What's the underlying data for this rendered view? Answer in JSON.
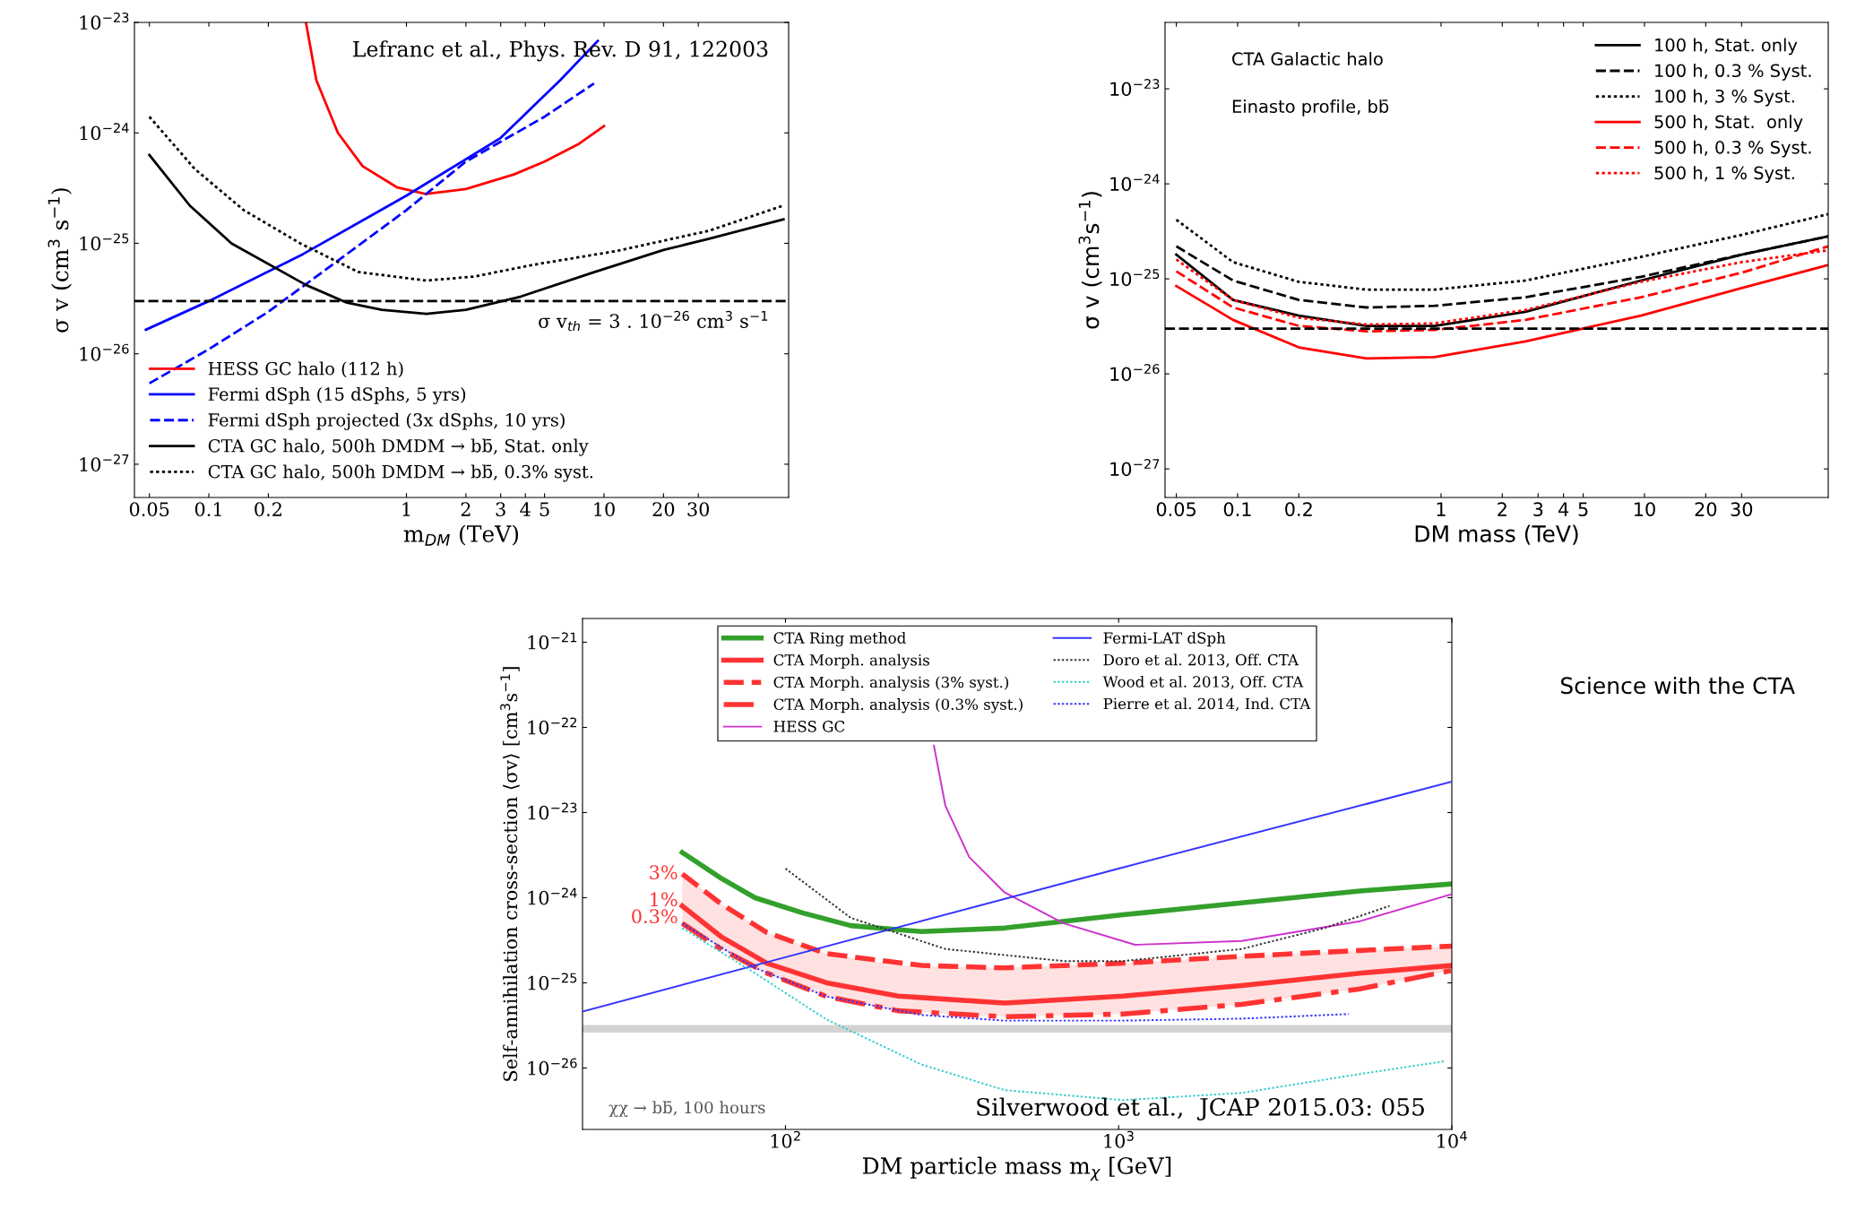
{
  "chart_data": [
    {
      "type": "line",
      "xlabel": "m$_{DM}$ (TeV)",
      "ylabel": "σ v (cm$^{3}$ s$^{−1}$)",
      "log": "xy",
      "legend": "bottom left",
      "grid": false,
      "xlim": [
        0.042,
        86
      ],
      "xticks": [
        0.05,
        0.1,
        0.2,
        1,
        2,
        3,
        4,
        5,
        10,
        20,
        30
      ],
      "ylim": [
        5e-28,
        1e-23
      ],
      "yticks": [
        {
          "value": 1e-27,
          "label": "10$^{−27}$"
        },
        {
          "value": 1e-26,
          "label": "10$^{−26}$"
        },
        {
          "value": 1e-25,
          "label": "10$^{−25}$"
        },
        {
          "value": 1e-24,
          "label": "10$^{−24}$"
        },
        {
          "value": 1e-23,
          "label": "10$^{−23}$"
        }
      ],
      "series": [
        {
          "name": "HESS GC halo (112 h)",
          "color": "#ff0000",
          "line_style": "solid",
          "x": [
            0.31,
            0.35,
            0.45,
            0.6,
            0.9,
            1.25,
            2,
            3.5,
            5,
            6,
            7.5,
            10
          ],
          "values": [
            1e-23,
            3e-24,
            1e-24,
            5e-25,
            3.2e-25,
            2.8e-25,
            3.1e-25,
            4.2e-25,
            5.5e-25,
            6.5e-25,
            8e-25,
            1.15e-24
          ]
        },
        {
          "name": "Fermi dSph (15 dSphs, 5 yrs)",
          "color": "#0000ff",
          "line_style": "solid",
          "x": [
            0.048,
            0.1,
            0.3,
            1,
            3,
            6,
            9.3
          ],
          "values": [
            1.65e-26,
            3e-26,
            8e-26,
            2.7e-25,
            9e-25,
            3e-24,
            6.8e-24
          ]
        },
        {
          "name": "Fermi dSph projected (3x dSphs, 10 yrs)",
          "color": "#0000ff",
          "line_style": "dashed",
          "x": [
            0.05,
            0.1,
            0.2,
            0.5,
            1,
            2,
            5,
            8.9
          ],
          "values": [
            5.4e-27,
            1.1e-26,
            2.4e-26,
            8e-26,
            2e-25,
            5.5e-25,
            1.4e-24,
            2.8e-24
          ]
        },
        {
          "name": "CTA GC halo, 500h DMDM → bb̄, Stat. only",
          "color": "#000000",
          "line_style": "solid",
          "x": [
            0.05,
            0.08,
            0.13,
            0.31,
            0.5,
            0.75,
            1.26,
            2,
            3.8,
            8.7,
            20,
            34,
            81
          ],
          "values": [
            6.3e-25,
            2.2e-25,
            1e-25,
            4.2e-26,
            2.9e-26,
            2.5e-26,
            2.3e-26,
            2.5e-26,
            3.3e-26,
            5.4e-26,
            8.7e-26,
            1.1e-25,
            1.65e-25
          ]
        },
        {
          "name": "CTA GC halo, 500h DMDM → bb̄, 0.3% syst.",
          "color": "#000000",
          "line_style": "dotted",
          "x": [
            0.05,
            0.085,
            0.15,
            0.29,
            0.57,
            1.26,
            2.2,
            4.4,
            11.5,
            34,
            81
          ],
          "values": [
            1.4e-24,
            4.7e-25,
            2e-25,
            1e-25,
            5.5e-26,
            4.6e-26,
            5e-26,
            6.4e-26,
            8.5e-26,
            1.3e-25,
            2.2e-25
          ]
        }
      ],
      "ref_lines": [
        {
          "axis": "y",
          "value": 3e-26,
          "color": "#000000",
          "line_style": "dashed"
        }
      ],
      "annotations": [
        "Lefranc et al., Phys. Rev. D 91, 122003",
        "σ v$_{th}$ = 3 . 10$^{−26}$ cm$^{3}$ s$^{−1}$"
      ]
    },
    {
      "type": "line",
      "xlabel": "DM mass (TeV)",
      "ylabel": "σ v (cm$^{3}$s$^{−1}$)",
      "log": "xy",
      "legend": "top right",
      "grid": false,
      "xlim": [
        0.044,
        80
      ],
      "xticks": [
        0.05,
        0.1,
        0.2,
        1,
        2,
        3,
        4,
        5,
        10,
        20,
        30
      ],
      "ylim": [
        5e-28,
        5e-23
      ],
      "yticks": [
        {
          "value": 1e-27,
          "label": "10$^{−27}$"
        },
        {
          "value": 1e-26,
          "label": "10$^{−26}$"
        },
        {
          "value": 1e-25,
          "label": "10$^{−25}$"
        },
        {
          "value": 1e-24,
          "label": "10$^{−24}$"
        },
        {
          "value": 1e-23,
          "label": "10$^{−23}$"
        }
      ],
      "series": [
        {
          "name": "100 h, Stat. only",
          "color": "#000000",
          "line_style": "solid",
          "x": [
            0.05,
            0.095,
            0.2,
            0.43,
            0.93,
            2.6,
            9.6,
            30,
            80
          ],
          "values": [
            1.8e-25,
            6e-26,
            4.1e-26,
            3.2e-26,
            3.2e-26,
            4.5e-26,
            9.6e-26,
            1.8e-25,
            2.8e-25
          ]
        },
        {
          "name": "100 h, 0.3 % Syst.",
          "color": "#000000",
          "line_style": "dashed",
          "x": [
            0.05,
            0.095,
            0.2,
            0.43,
            0.93,
            2.6,
            9.6,
            30,
            80
          ],
          "values": [
            2.2e-25,
            9.6e-26,
            6e-26,
            5e-26,
            5.2e-26,
            6.4e-26,
            1.05e-25,
            1.8e-25,
            2.8e-25
          ]
        },
        {
          "name": "100 h, 3 % Syst.",
          "color": "#000000",
          "line_style": "dotted",
          "x": [
            0.05,
            0.095,
            0.2,
            0.43,
            0.93,
            2.6,
            9.6,
            30,
            80
          ],
          "values": [
            4.2e-25,
            1.5e-25,
            9.3e-26,
            7.7e-26,
            7.7e-26,
            9.6e-26,
            1.7e-25,
            2.9e-25,
            4.8e-25
          ]
        },
        {
          "name": "500 h, Stat.  only",
          "color": "#ff0000",
          "line_style": "solid",
          "x": [
            0.05,
            0.095,
            0.2,
            0.43,
            0.93,
            2.6,
            9.6,
            30,
            80
          ],
          "values": [
            8.4e-26,
            3.7e-26,
            1.9e-26,
            1.45e-26,
            1.5e-26,
            2.2e-26,
            4.1e-26,
            8e-26,
            1.4e-25
          ]
        },
        {
          "name": "500 h, 0.3 % Syst.",
          "color": "#ff0000",
          "line_style": "dashed",
          "x": [
            0.05,
            0.095,
            0.2,
            0.43,
            0.93,
            2.6,
            9.6,
            30,
            80
          ],
          "values": [
            1.2e-25,
            5e-26,
            3.2e-26,
            2.8e-26,
            2.9e-26,
            3.7e-26,
            6.4e-26,
            1.16e-25,
            2.2e-25
          ]
        },
        {
          "name": "500 h, 1 % Syst.",
          "color": "#ff0000",
          "line_style": "dotted",
          "x": [
            0.05,
            0.095,
            0.2,
            0.43,
            0.93,
            2.6,
            9.6,
            30,
            80
          ],
          "values": [
            1.6e-25,
            6e-26,
            3.9e-26,
            3.3e-26,
            3.4e-26,
            4.7e-26,
            9.3e-26,
            1.5e-25,
            2e-25
          ]
        }
      ],
      "ref_lines": [
        {
          "axis": "y",
          "value": 3e-26,
          "color": "#000000",
          "line_style": "dashed"
        }
      ],
      "annotations": [
        "CTA Galactic halo",
        "Einasto profile, bb̄",
        "Science with the CTA"
      ]
    },
    {
      "type": "line",
      "xlabel": "DM particle mass m$_{χ}$ [GeV]",
      "ylabel": "Self-annihilation cross-section ⟨σv⟩ [cm$^{3}$s$^{−1}$]",
      "log": "xy",
      "legend": "top",
      "grid": false,
      "xlim": [
        24.6,
        10000
      ],
      "xticks": [
        {
          "value": 100,
          "label": "10$^{2}$"
        },
        {
          "value": 1000,
          "label": "10$^{3}$"
        },
        {
          "value": 10000,
          "label": "10$^{4}$"
        }
      ],
      "ylim": [
        1.9e-27,
        1.9e-21
      ],
      "yticks": [
        {
          "value": 1e-26,
          "label": "10$^{−26}$"
        },
        {
          "value": 1e-25,
          "label": "10$^{−25}$"
        },
        {
          "value": 1e-24,
          "label": "10$^{−24}$"
        },
        {
          "value": 1e-23,
          "label": "10$^{−23}$"
        },
        {
          "value": 1e-22,
          "label": "10$^{−22}$"
        },
        {
          "value": 1e-21,
          "label": "10$^{−21}$"
        }
      ],
      "series": [
        {
          "name": "CTA Ring method",
          "color": "#33a02c",
          "line_style": "solid",
          "x": [
            49,
            64,
            81,
            113,
            157,
            256,
            455,
            1030,
            2340,
            5300,
            10000
          ],
          "values": [
            3.4e-24,
            1.7e-24,
            1e-24,
            6.6e-25,
            4.7e-25,
            4e-25,
            4.4e-25,
            6.3e-25,
            8.7e-25,
            1.2e-24,
            1.45e-24
          ]
        },
        {
          "name": "CTA Morph. analysis",
          "color": "#ff3333",
          "line_style": "solid",
          "x": [
            49,
            64,
            88,
            133,
            218,
            455,
            1030,
            2340,
            5300,
            10000
          ],
          "values": [
            8e-25,
            3.5e-25,
            1.7e-25,
            1e-25,
            7e-26,
            5.8e-26,
            7e-26,
            9.3e-26,
            1.3e-25,
            1.6e-25
          ],
          "lower": [
            5e-25,
            2.5e-25,
            1.3e-25,
            6.9e-26,
            4.7e-26,
            4e-26,
            4.3e-26,
            5.6e-26,
            8.5e-26,
            1.4e-25
          ],
          "upper": [
            1.9e-24,
            8.5e-25,
            3.9e-25,
            2.2e-25,
            1.6e-25,
            1.5e-25,
            1.7e-25,
            2.05e-25,
            2.4e-25,
            2.7e-25
          ]
        },
        {
          "name": "CTA Morph. analysis (3% syst.)",
          "color": "#ff3333",
          "line_style": "dashed",
          "x": [
            49,
            64,
            88,
            133,
            256,
            455,
            1030,
            2340,
            5300,
            10000
          ],
          "values": [
            1.9e-24,
            8.5e-25,
            3.9e-25,
            2.2e-25,
            1.6e-25,
            1.5e-25,
            1.7e-25,
            2.05e-25,
            2.4e-25,
            2.7e-25
          ]
        },
        {
          "name": "CTA Morph. analysis (0.3% syst.)",
          "color": "#ff3333",
          "line_style": "dashdot",
          "x": [
            49,
            64,
            88,
            133,
            218,
            455,
            1030,
            2340,
            5300,
            10000
          ],
          "values": [
            5e-25,
            2.5e-25,
            1.3e-25,
            6.9e-26,
            4.7e-26,
            4e-26,
            4.3e-26,
            5.6e-26,
            8.5e-26,
            1.4e-25
          ]
        },
        {
          "name": "HESS GC",
          "color": "#cc33cc",
          "line_style": "solid",
          "x": [
            279,
            302,
            356,
            455,
            685,
            1120,
            2340,
            5300,
            10000
          ],
          "values": [
            6.1e-23,
            1.2e-23,
            3e-24,
            1.15e-24,
            5e-25,
            2.8e-25,
            3.1e-25,
            5.3e-25,
            1.1e-24
          ]
        },
        {
          "name": "Fermi-LAT dSph",
          "color": "#3333ff",
          "line_style": "solid",
          "x": [
            24.6,
            100,
            1000,
            10000
          ],
          "values": [
            4.6e-26,
            2e-25,
            2.2e-24,
            2.3e-23
          ]
        },
        {
          "name": "Doro et al. 2013, Off. CTA",
          "color": "#333333",
          "line_style": "dotted",
          "x": [
            100,
            157,
            302,
            685,
            1030,
            2340,
            4150,
            6500
          ],
          "values": [
            2.2e-24,
            5.8e-25,
            2.5e-25,
            1.8e-25,
            1.8e-25,
            2.5e-25,
            4.4e-25,
            8e-25
          ]
        },
        {
          "name": "Wood et al. 2013, Off. CTA",
          "color": "#33cccc",
          "line_style": "dotted",
          "x": [
            49,
            81,
            133,
            256,
            455,
            1030,
            2340,
            5300,
            9500
          ],
          "values": [
            4.4e-25,
            1.3e-25,
            3.7e-26,
            1.1e-26,
            5.5e-27,
            4.2e-27,
            5.1e-27,
            8.5e-27,
            1.2e-26
          ]
        },
        {
          "name": "Pierre et al. 2014, Ind. CTA",
          "color": "#3333ff",
          "line_style": "dotted",
          "x": [
            49,
            81,
            133,
            256,
            455,
            1030,
            2340,
            4900
          ],
          "values": [
            5e-25,
            1.5e-25,
            6.9e-26,
            4.2e-26,
            3.6e-26,
            3.6e-26,
            3.8e-26,
            4.3e-26
          ]
        }
      ],
      "bands": [
        {
          "axis": "y",
          "from": 2.6e-26,
          "to": 3.2e-26,
          "color": "#d3d3d3"
        }
      ],
      "annotations": [
        "3%",
        "1%",
        "0.3%",
        "χχ → bb̄, 100 hours",
        "Silverwood et al.,  JCAP 2015.03: 055"
      ]
    }
  ]
}
